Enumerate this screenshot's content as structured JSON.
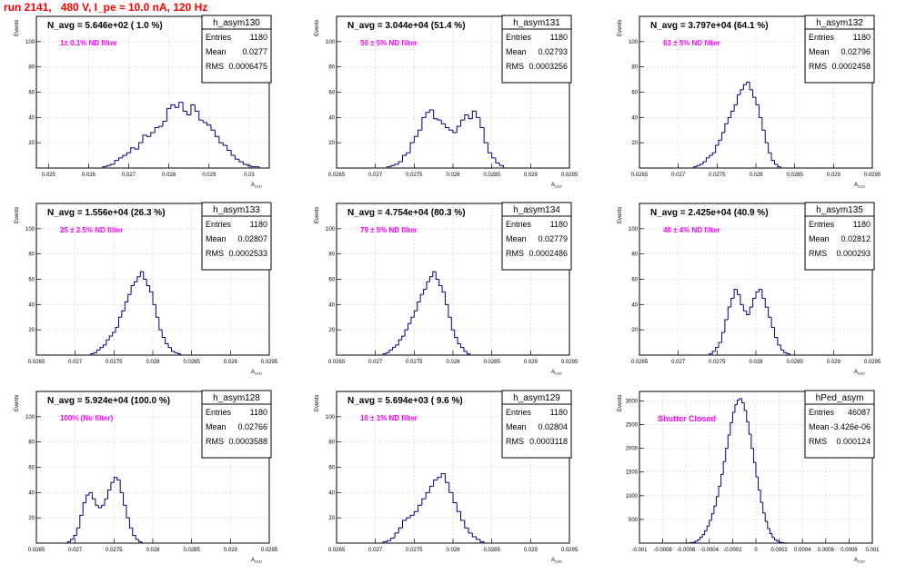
{
  "page": {
    "title": "run 2141,   480 V, I_pe ≈ 10.0 nA, 120 Hz"
  },
  "colors": {
    "title": "#ff0000",
    "annotation": "#ff00ff",
    "histogram": "#000080",
    "grid": "#d0d0d0"
  },
  "stats_labels": {
    "entries": "Entries",
    "mean": "Mean",
    "rms": "RMS"
  },
  "axis_titles": {
    "y": "Events",
    "x": "A_{LED}"
  },
  "chart_data": [
    {
      "type": "histogram",
      "name": "h_asym130",
      "navg": "N_avg = 5.646e+02 ( 1.0 %)",
      "annotation": "1± 0.1% ND filter",
      "stats": {
        "entries": "1180",
        "mean": "0.0277",
        "rms": "0.0006475"
      },
      "xlim": [
        0.0247,
        0.0305
      ],
      "ylim": [
        0,
        120
      ],
      "xticks": [
        "0.025",
        "0.026",
        "0.027",
        "0.028",
        "0.029",
        "0.03"
      ],
      "yticks": [
        "20",
        "40",
        "60",
        "80",
        "100"
      ],
      "bin_start": 0.02635,
      "bin_width": 0.0001,
      "values": [
        1,
        2,
        3,
        6,
        8,
        10,
        12,
        16,
        15,
        20,
        26,
        25,
        28,
        32,
        33,
        37,
        47,
        50,
        48,
        52,
        45,
        42,
        50,
        45,
        38,
        36,
        34,
        30,
        25,
        20,
        18,
        14,
        10,
        7,
        5,
        3,
        2,
        1,
        1
      ]
    },
    {
      "type": "histogram",
      "name": "h_asym131",
      "navg": "N_avg = 3.044e+04 (51.4 %)",
      "annotation": "50 ± 5% ND filter",
      "stats": {
        "entries": "1180",
        "mean": "0.02793",
        "rms": "0.0003256"
      },
      "xlim": [
        0.0265,
        0.0295
      ],
      "ylim": [
        0,
        120
      ],
      "xticks": [
        "0.0265",
        "0.027",
        "0.0275",
        "0.028",
        "0.0285",
        "0.029",
        "0.0295"
      ],
      "yticks": [
        "20",
        "40",
        "60",
        "80",
        "100"
      ],
      "bin_start": 0.02715,
      "bin_width": 5e-05,
      "values": [
        1,
        2,
        3,
        5,
        10,
        12,
        20,
        25,
        30,
        40,
        44,
        46,
        39,
        38,
        35,
        32,
        30,
        28,
        33,
        38,
        42,
        39,
        45,
        40,
        32,
        20,
        12,
        8,
        4,
        2
      ]
    },
    {
      "type": "histogram",
      "name": "h_asym132",
      "navg": "N_avg = 3.797e+04 (64.1 %)",
      "annotation": "63 ± 5% ND filter",
      "stats": {
        "entries": "1180",
        "mean": "0.02796",
        "rms": "0.0002458"
      },
      "xlim": [
        0.0265,
        0.0295
      ],
      "ylim": [
        0,
        120
      ],
      "xticks": [
        "0.0265",
        "0.027",
        "0.0275",
        "0.028",
        "0.0285",
        "0.029",
        "0.0295"
      ],
      "yticks": [
        "20",
        "40",
        "60",
        "80",
        "100"
      ],
      "bin_start": 0.0272,
      "bin_width": 4e-05,
      "values": [
        1,
        2,
        3,
        5,
        8,
        10,
        12,
        18,
        22,
        28,
        35,
        40,
        45,
        50,
        58,
        62,
        66,
        68,
        62,
        56,
        50,
        40,
        30,
        20,
        12,
        6,
        3,
        1
      ]
    },
    {
      "type": "histogram",
      "name": "h_asym133",
      "navg": "N_avg = 1.556e+04 (26.3 %)",
      "annotation": "25 ± 2.5% ND filter",
      "stats": {
        "entries": "1180",
        "mean": "0.02807",
        "rms": "0.0002533"
      },
      "xlim": [
        0.0265,
        0.0295
      ],
      "ylim": [
        0,
        120
      ],
      "xticks": [
        "0.0265",
        "0.027",
        "0.0275",
        "0.028",
        "0.0285",
        "0.029",
        "0.0295"
      ],
      "yticks": [
        "20",
        "40",
        "60",
        "80",
        "100"
      ],
      "bin_start": 0.0272,
      "bin_width": 4e-05,
      "values": [
        1,
        2,
        4,
        6,
        8,
        12,
        15,
        18,
        22,
        30,
        35,
        42,
        48,
        55,
        58,
        62,
        66,
        60,
        55,
        50,
        40,
        30,
        20,
        14,
        9,
        6,
        3,
        2,
        1
      ]
    },
    {
      "type": "histogram",
      "name": "h_asym134",
      "navg": "N_avg = 4.754e+04 (80.3 %)",
      "annotation": "79 ± 5% ND filter",
      "stats": {
        "entries": "1180",
        "mean": "0.02779",
        "rms": "0.0002486"
      },
      "xlim": [
        0.0265,
        0.0295
      ],
      "ylim": [
        0,
        120
      ],
      "xticks": [
        "0.0265",
        "0.027",
        "0.0275",
        "0.028",
        "0.0285",
        "0.029",
        "0.0295"
      ],
      "yticks": [
        "20",
        "40",
        "60",
        "80",
        "100"
      ],
      "bin_start": 0.0271,
      "bin_width": 4e-05,
      "values": [
        1,
        2,
        4,
        6,
        8,
        12,
        15,
        20,
        25,
        30,
        35,
        42,
        48,
        52,
        58,
        62,
        66,
        60,
        55,
        50,
        40,
        30,
        20,
        14,
        9,
        6,
        3,
        1
      ]
    },
    {
      "type": "histogram",
      "name": "h_asym135",
      "navg": "N_avg = 2.425e+04 (40.9 %)",
      "annotation": "40 ± 4% ND filter",
      "stats": {
        "entries": "1180",
        "mean": "0.02812",
        "rms": "0.000293"
      },
      "xlim": [
        0.0265,
        0.0295
      ],
      "ylim": [
        0,
        120
      ],
      "xticks": [
        "0.0265",
        "0.027",
        "0.0275",
        "0.028",
        "0.0285",
        "0.029",
        "0.0295"
      ],
      "yticks": [
        "20",
        "40",
        "60",
        "80",
        "100"
      ],
      "bin_start": 0.0274,
      "bin_width": 4e-05,
      "values": [
        1,
        3,
        6,
        10,
        18,
        28,
        38,
        45,
        52,
        48,
        40,
        35,
        32,
        38,
        45,
        50,
        52,
        45,
        38,
        30,
        22,
        14,
        8,
        4,
        2,
        1
      ]
    },
    {
      "type": "histogram",
      "name": "h_asym128",
      "navg": "N_avg = 5.924e+04 (100.0 %)",
      "annotation": "100% (No filter)",
      "stats": {
        "entries": "1180",
        "mean": "0.02766",
        "rms": "0.0003588"
      },
      "xlim": [
        0.0265,
        0.0295
      ],
      "ylim": [
        0,
        120
      ],
      "xticks": [
        "0.0265",
        "0.027",
        "0.0275",
        "0.028",
        "0.0285",
        "0.029",
        "0.0295"
      ],
      "yticks": [
        "20",
        "40",
        "60",
        "80",
        "100"
      ],
      "bin_start": 0.0269,
      "bin_width": 4e-05,
      "values": [
        1,
        3,
        6,
        12,
        22,
        32,
        38,
        40,
        35,
        30,
        28,
        30,
        35,
        42,
        48,
        52,
        50,
        40,
        30,
        20,
        12,
        6,
        3,
        1
      ]
    },
    {
      "type": "histogram",
      "name": "h_asym129",
      "navg": "N_avg = 5.694e+03 ( 9.6 %)",
      "annotation": "10 ± 1% ND filter",
      "stats": {
        "entries": "1180",
        "mean": "0.02804",
        "rms": "0.0003118"
      },
      "xlim": [
        0.0265,
        0.0295
      ],
      "ylim": [
        0,
        120
      ],
      "xticks": [
        "0.0265",
        "0.027",
        "0.0275",
        "0.028",
        "0.0285",
        "0.029",
        "0.0295"
      ],
      "yticks": [
        "20",
        "40",
        "60",
        "80",
        "100"
      ],
      "bin_start": 0.0271,
      "bin_width": 5e-05,
      "values": [
        1,
        2,
        4,
        8,
        12,
        18,
        20,
        22,
        25,
        30,
        35,
        40,
        45,
        50,
        52,
        55,
        48,
        40,
        32,
        25,
        18,
        12,
        8,
        5,
        3,
        1
      ]
    },
    {
      "type": "histogram",
      "name": "hPed_asym",
      "navg": "",
      "annotation": "Shutter Closed",
      "stats": {
        "entries": "46087",
        "mean": "-3.426e-06",
        "rms": "0.000124"
      },
      "xlim": [
        -0.001,
        0.001
      ],
      "ylim": [
        0,
        3200
      ],
      "xticks": [
        "-0.001",
        "-0.0008",
        "-0.0006",
        "-0.0004",
        "-0.0002",
        "0",
        "0.0002",
        "0.0004",
        "0.0006",
        "0.0008",
        "0.001"
      ],
      "yticks": [
        "500",
        "1000",
        "1500",
        "2000",
        "2500",
        "3000"
      ],
      "bin_start": -0.0006,
      "bin_width": 2e-05,
      "values": [
        2,
        5,
        10,
        20,
        40,
        70,
        120,
        180,
        260,
        360,
        480,
        620,
        780,
        980,
        1200,
        1450,
        1720,
        2000,
        2280,
        2540,
        2760,
        2920,
        3020,
        3050,
        2960,
        2800,
        2560,
        2300,
        2000,
        1700,
        1400,
        1120,
        860,
        640,
        460,
        310,
        200,
        120,
        70,
        40,
        20,
        10,
        5,
        2
      ]
    }
  ]
}
